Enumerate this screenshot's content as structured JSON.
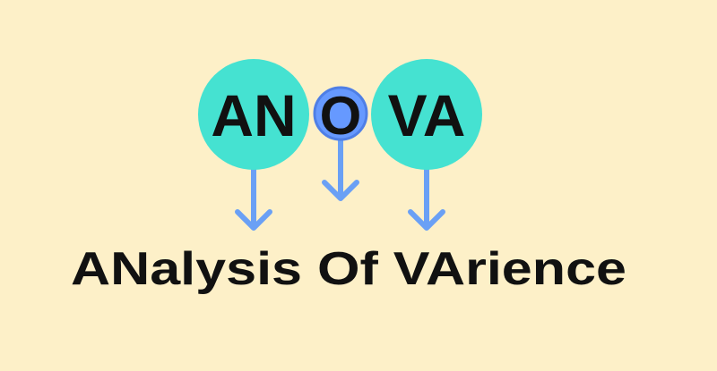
{
  "acronym": {
    "part1": "AN",
    "part2": "O",
    "part3": "VA"
  },
  "expansion": "ANalysis Of VArience",
  "colors": {
    "background": "#fdf0c8",
    "circle_large": "#45e2d1",
    "circle_small": "#6699ff",
    "circle_small_border": "#4f7fe6",
    "arrow": "#6aa0f5",
    "text": "#111111"
  }
}
